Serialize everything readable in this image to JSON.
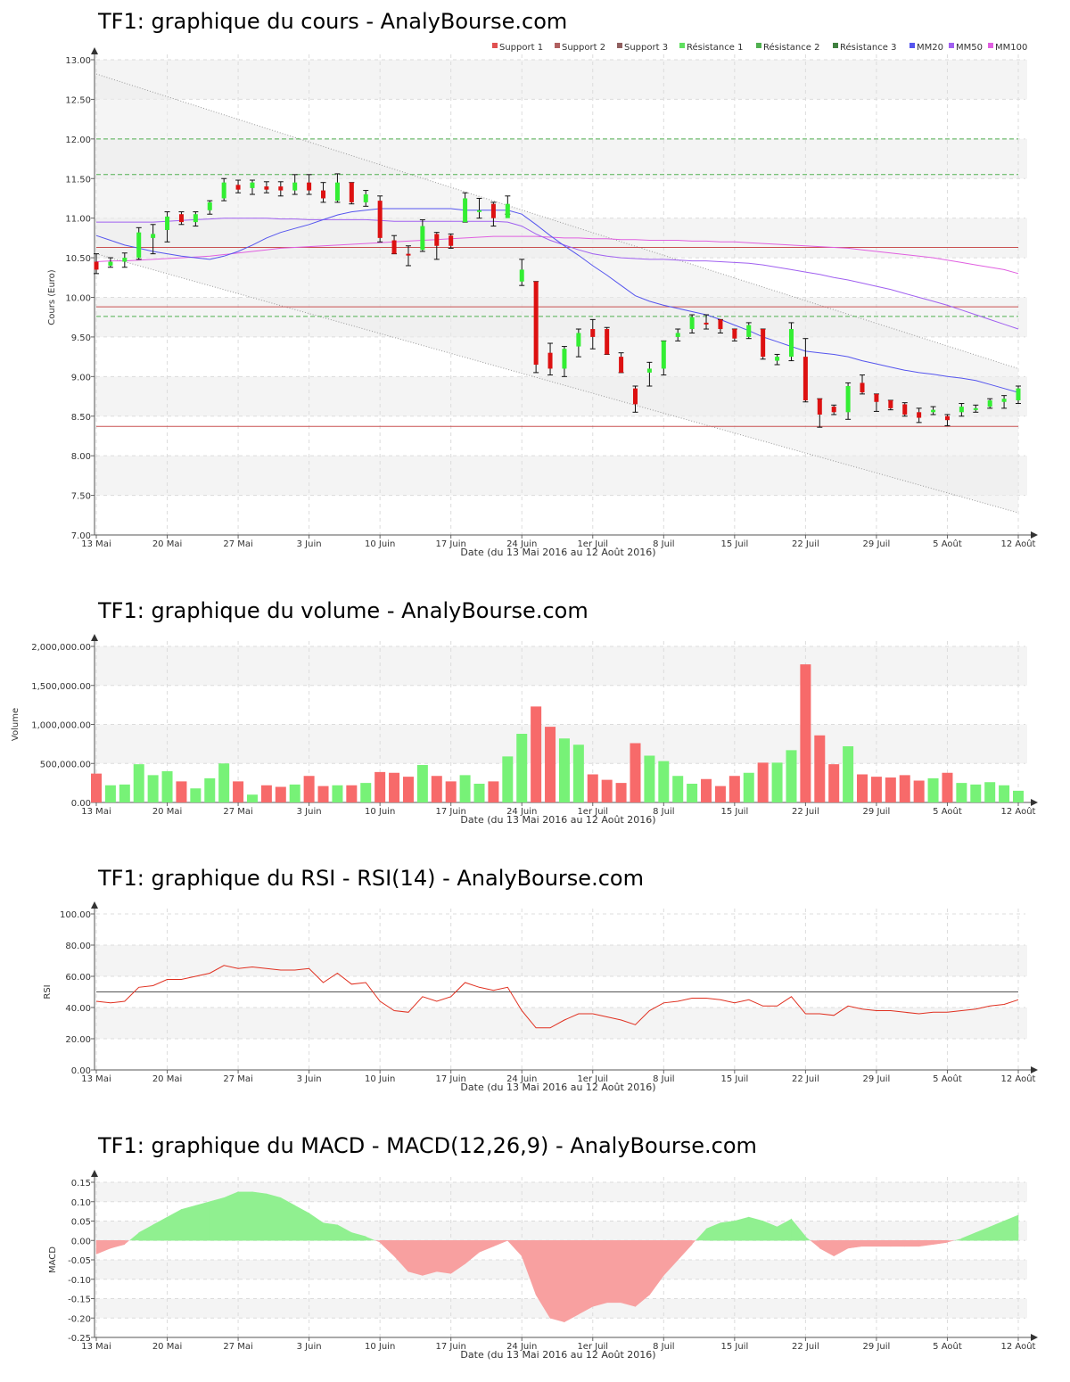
{
  "page": {
    "price_title": "TF1: graphique du cours - AnalyBourse.com",
    "volume_title": "TF1: graphique du volume - AnalyBourse.com",
    "rsi_title": "TF1: graphique du RSI - RSI(14) - AnalyBourse.com",
    "macd_title": "TF1: graphique du MACD - MACD(12,26,9) - AnalyBourse.com"
  },
  "colors": {
    "up": "#33ee33",
    "down": "#dd1111",
    "vol_up": "#77f277",
    "vol_down": "#f76a6a",
    "mm20": "#5555ee",
    "mm50": "#a060f0",
    "mm100": "#e060e0",
    "support": "#c85050",
    "resistance": "#50b050",
    "rsi": "#e03020",
    "macd_pos": "#90f090",
    "macd_neg": "#f8a0a0",
    "band_shade": "#f4f4f4",
    "grid": "#dcdcdc"
  },
  "chart_data": [
    {
      "type": "candlestick",
      "title": "TF1: graphique du cours - AnalyBourse.com",
      "xlabel": "Date (du 13 Mai 2016 au 12 Août 2016)",
      "ylabel": "Cours (Euro)",
      "ylim": [
        7.0,
        13.0
      ],
      "yticks": [
        7.0,
        7.5,
        8.0,
        8.5,
        9.0,
        9.5,
        10.0,
        10.5,
        11.0,
        11.5,
        12.0,
        12.5,
        13.0
      ],
      "ytick_labels": [
        "7.00",
        "7.50",
        "8.00",
        "8.50",
        "9.00",
        "9.50",
        "10.00",
        "10.50",
        "11.00",
        "11.50",
        "12.00",
        "12.50",
        "13.00"
      ],
      "xtick_labels": [
        "13 Mai",
        "20 Mai",
        "27 Mai",
        "3 Juin",
        "10 Juin",
        "17 Juin",
        "24 Juin",
        "1er Juil",
        "8 Juil",
        "15 Juil",
        "22 Juil",
        "29 Juil",
        "5 Août",
        "12 Août"
      ],
      "xtick_index": [
        0,
        5,
        10,
        15,
        20,
        25,
        30,
        35,
        40,
        45,
        50,
        55,
        60,
        65
      ],
      "legend": [
        "Support 1",
        "Support 2",
        "Support 3",
        "Résistance 1",
        "Résistance 2",
        "Résistance 3",
        "MM20",
        "MM50",
        "MM100"
      ],
      "legend_colors": [
        "#e05050",
        "#b06060",
        "#906060",
        "#60e060",
        "#50b050",
        "#408040",
        "#5555ee",
        "#a060f0",
        "#e060e0"
      ],
      "legend_position": "top-right",
      "grid": true,
      "candles": [
        [
          10.45,
          10.55,
          10.3,
          10.35
        ],
        [
          10.4,
          10.5,
          10.38,
          10.45
        ],
        [
          10.45,
          10.56,
          10.38,
          10.5
        ],
        [
          10.5,
          10.88,
          10.48,
          10.82
        ],
        [
          10.75,
          10.92,
          10.55,
          10.8
        ],
        [
          10.85,
          11.08,
          10.7,
          11.02
        ],
        [
          11.05,
          11.08,
          10.92,
          10.95
        ],
        [
          10.95,
          11.08,
          10.9,
          11.05
        ],
        [
          11.1,
          11.22,
          11.05,
          11.2
        ],
        [
          11.25,
          11.5,
          11.22,
          11.45
        ],
        [
          11.42,
          11.48,
          11.32,
          11.36
        ],
        [
          11.38,
          11.48,
          11.3,
          11.45
        ],
        [
          11.4,
          11.46,
          11.32,
          11.36
        ],
        [
          11.4,
          11.46,
          11.28,
          11.35
        ],
        [
          11.35,
          11.55,
          11.3,
          11.45
        ],
        [
          11.45,
          11.55,
          11.3,
          11.35
        ],
        [
          11.35,
          11.45,
          11.2,
          11.25
        ],
        [
          11.22,
          11.56,
          11.2,
          11.45
        ],
        [
          11.45,
          11.45,
          11.18,
          11.2
        ],
        [
          11.2,
          11.35,
          11.15,
          11.3
        ],
        [
          11.22,
          11.28,
          10.7,
          10.75
        ],
        [
          10.72,
          10.78,
          10.55,
          10.55
        ],
        [
          10.55,
          10.65,
          10.4,
          10.54
        ],
        [
          10.6,
          10.98,
          10.58,
          10.9
        ],
        [
          10.8,
          10.82,
          10.48,
          10.65
        ],
        [
          10.78,
          10.8,
          10.62,
          10.65
        ],
        [
          10.95,
          11.32,
          10.95,
          11.25
        ],
        [
          11.1,
          11.25,
          11.0,
          11.1
        ],
        [
          11.18,
          11.2,
          10.9,
          11.0
        ],
        [
          11.0,
          11.28,
          11.05,
          11.18
        ],
        [
          10.2,
          10.48,
          10.15,
          10.35
        ],
        [
          10.2,
          10.2,
          9.05,
          9.15
        ],
        [
          9.3,
          9.42,
          9.02,
          9.1
        ],
        [
          9.1,
          9.38,
          9.0,
          9.35
        ],
        [
          9.38,
          9.6,
          9.25,
          9.55
        ],
        [
          9.6,
          9.72,
          9.35,
          9.5
        ],
        [
          9.6,
          9.62,
          9.28,
          9.28
        ],
        [
          9.25,
          9.3,
          9.05,
          9.05
        ],
        [
          8.85,
          8.88,
          8.55,
          8.65
        ],
        [
          9.05,
          9.18,
          8.88,
          9.1
        ],
        [
          9.1,
          9.45,
          9.02,
          9.45
        ],
        [
          9.5,
          9.6,
          9.45,
          9.55
        ],
        [
          9.6,
          9.78,
          9.55,
          9.75
        ],
        [
          9.68,
          9.78,
          9.6,
          9.66
        ],
        [
          9.72,
          9.72,
          9.55,
          9.6
        ],
        [
          9.6,
          9.6,
          9.45,
          9.48
        ],
        [
          9.5,
          9.68,
          9.48,
          9.65
        ],
        [
          9.6,
          9.6,
          9.22,
          9.25
        ],
        [
          9.2,
          9.28,
          9.15,
          9.25
        ],
        [
          9.25,
          9.68,
          9.2,
          9.6
        ],
        [
          9.25,
          9.48,
          8.68,
          8.7
        ],
        [
          8.72,
          8.72,
          8.36,
          8.52
        ],
        [
          8.62,
          8.64,
          8.52,
          8.55
        ],
        [
          8.55,
          8.92,
          8.46,
          8.88
        ],
        [
          8.92,
          9.02,
          8.78,
          8.8
        ],
        [
          8.78,
          8.78,
          8.56,
          8.68
        ],
        [
          8.7,
          8.7,
          8.58,
          8.6
        ],
        [
          8.65,
          8.67,
          8.5,
          8.52
        ],
        [
          8.55,
          8.6,
          8.42,
          8.48
        ],
        [
          8.55,
          8.62,
          8.52,
          8.58
        ],
        [
          8.5,
          8.52,
          8.38,
          8.45
        ],
        [
          8.55,
          8.66,
          8.5,
          8.62
        ],
        [
          8.6,
          8.64,
          8.55,
          8.6
        ],
        [
          8.62,
          8.72,
          8.6,
          8.7
        ],
        [
          8.68,
          8.76,
          8.6,
          8.72
        ],
        [
          8.7,
          8.88,
          8.66,
          8.85
        ]
      ],
      "mm20": [
        10.78,
        10.72,
        10.66,
        10.62,
        10.58,
        10.55,
        10.52,
        10.5,
        10.48,
        10.52,
        10.58,
        10.66,
        10.75,
        10.82,
        10.87,
        10.92,
        10.98,
        11.04,
        11.08,
        11.1,
        11.12,
        11.12,
        11.12,
        11.12,
        11.12,
        11.12,
        11.1,
        11.1,
        11.1,
        11.1,
        11.05,
        10.92,
        10.78,
        10.65,
        10.53,
        10.4,
        10.28,
        10.15,
        10.02,
        9.95,
        9.9,
        9.86,
        9.82,
        9.78,
        9.72,
        9.65,
        9.58,
        9.5,
        9.44,
        9.38,
        9.32,
        9.3,
        9.28,
        9.25,
        9.2,
        9.16,
        9.12,
        9.08,
        9.05,
        9.03,
        9.0,
        8.98,
        8.95,
        8.9,
        8.85,
        8.8
      ],
      "mm50": [
        10.95,
        10.95,
        10.95,
        10.95,
        10.95,
        10.96,
        10.97,
        10.98,
        10.99,
        11.0,
        11.0,
        11.0,
        11.0,
        10.99,
        10.99,
        10.98,
        10.98,
        10.98,
        10.98,
        10.98,
        10.97,
        10.96,
        10.96,
        10.96,
        10.96,
        10.96,
        10.96,
        10.96,
        10.96,
        10.95,
        10.9,
        10.8,
        10.72,
        10.66,
        10.6,
        10.55,
        10.52,
        10.5,
        10.49,
        10.48,
        10.48,
        10.47,
        10.46,
        10.46,
        10.45,
        10.44,
        10.43,
        10.41,
        10.38,
        10.35,
        10.32,
        10.29,
        10.25,
        10.22,
        10.18,
        10.14,
        10.1,
        10.05,
        10.0,
        9.95,
        9.9,
        9.84,
        9.78,
        9.72,
        9.66,
        9.6
      ],
      "mm100": [
        10.45,
        10.46,
        10.46,
        10.47,
        10.48,
        10.49,
        10.5,
        10.51,
        10.52,
        10.54,
        10.56,
        10.58,
        10.6,
        10.62,
        10.63,
        10.64,
        10.65,
        10.66,
        10.67,
        10.68,
        10.69,
        10.7,
        10.71,
        10.72,
        10.73,
        10.74,
        10.75,
        10.76,
        10.77,
        10.77,
        10.77,
        10.77,
        10.76,
        10.75,
        10.75,
        10.74,
        10.74,
        10.73,
        10.73,
        10.72,
        10.72,
        10.72,
        10.71,
        10.71,
        10.7,
        10.7,
        10.69,
        10.68,
        10.67,
        10.66,
        10.65,
        10.64,
        10.63,
        10.62,
        10.6,
        10.58,
        10.56,
        10.54,
        10.52,
        10.5,
        10.47,
        10.44,
        10.41,
        10.38,
        10.35,
        10.3
      ],
      "supports": [
        {
          "name": "Support 1",
          "value": 8.37
        },
        {
          "name": "Support 2",
          "value": 9.88
        },
        {
          "name": "Support 3",
          "value": 10.63
        }
      ],
      "resistances": [
        {
          "name": "Résistance 1",
          "value": 9.76
        },
        {
          "name": "Résistance 2",
          "value": 11.55
        },
        {
          "name": "Résistance 3",
          "value": 12.0
        }
      ],
      "channel_upper": [
        12.82,
        9.1
      ],
      "channel_lower": [
        10.55,
        7.28
      ]
    },
    {
      "type": "bar",
      "title": "TF1: graphique du volume - AnalyBourse.com",
      "xlabel": "Date (du 13 Mai 2016 au 12 Août 2016)",
      "ylabel": "Volume",
      "ylim": [
        0,
        2000000
      ],
      "yticks": [
        0,
        500000,
        1000000,
        1500000,
        2000000
      ],
      "ytick_labels": [
        "0.00",
        "500,000.00",
        "1,000,000.00",
        "1,500,000.00",
        "2,000,000.00"
      ],
      "xtick_labels": [
        "13 Mai",
        "20 Mai",
        "27 Mai",
        "3 Juin",
        "10 Juin",
        "17 Juin",
        "24 Juin",
        "1er Juil",
        "8 Juil",
        "15 Juil",
        "22 Juil",
        "29 Juil",
        "5 Août",
        "12 Août"
      ],
      "grid": true,
      "values": [
        370000,
        220000,
        230000,
        490000,
        350000,
        400000,
        270000,
        180000,
        310000,
        500000,
        270000,
        100000,
        220000,
        200000,
        230000,
        340000,
        210000,
        220000,
        220000,
        250000,
        390000,
        380000,
        330000,
        480000,
        340000,
        270000,
        350000,
        240000,
        270000,
        590000,
        880000,
        1230000,
        970000,
        820000,
        740000,
        360000,
        290000,
        250000,
        760000,
        600000,
        530000,
        340000,
        240000,
        300000,
        210000,
        340000,
        380000,
        510000,
        510000,
        670000,
        1770000,
        860000,
        490000,
        720000,
        360000,
        330000,
        320000,
        350000,
        280000,
        310000,
        380000,
        250000,
        230000,
        260000,
        220000,
        150000
      ]
    },
    {
      "type": "line",
      "title": "TF1: graphique du RSI - RSI(14) - AnalyBourse.com",
      "xlabel": "Date (du 13 Mai 2016 au 12 Août 2016)",
      "ylabel": "RSI",
      "ylim": [
        0,
        100
      ],
      "yticks": [
        0,
        20,
        40,
        60,
        80,
        100
      ],
      "ytick_labels": [
        "0.00",
        "20.00",
        "40.00",
        "60.00",
        "80.00",
        "100.00"
      ],
      "xtick_labels": [
        "13 Mai",
        "20 Mai",
        "27 Mai",
        "3 Juin",
        "10 Juin",
        "17 Juin",
        "24 Juin",
        "1er Juil",
        "8 Juil",
        "15 Juil",
        "22 Juil",
        "29 Juil",
        "5 Août",
        "12 Août"
      ],
      "reference_line": 50,
      "grid": true,
      "values": [
        44,
        43,
        44,
        53,
        54,
        58,
        58,
        60,
        62,
        67,
        65,
        66,
        65,
        64,
        64,
        65,
        56,
        62,
        55,
        56,
        44,
        38,
        37,
        47,
        44,
        47,
        56,
        53,
        51,
        53,
        38,
        27,
        27,
        32,
        36,
        36,
        34,
        32,
        29,
        38,
        43,
        44,
        46,
        46,
        45,
        43,
        45,
        41,
        41,
        47,
        36,
        36,
        35,
        41,
        39,
        38,
        38,
        37,
        36,
        37,
        37,
        38,
        39,
        41,
        42,
        45
      ]
    },
    {
      "type": "area",
      "title": "TF1: graphique du MACD - MACD(12,26,9) - AnalyBourse.com",
      "xlabel": "Date (du 13 Mai 2016 au 12 Août 2016)",
      "ylabel": "MACD",
      "ylim": [
        -0.25,
        0.15
      ],
      "yticks": [
        -0.25,
        -0.2,
        -0.15,
        -0.1,
        -0.05,
        0,
        0.05,
        0.1,
        0.15
      ],
      "ytick_labels": [
        "-0.25",
        "-0.20",
        "-0.15",
        "-0.10",
        "-0.05",
        "0.00",
        "0.05",
        "0.10",
        "0.15"
      ],
      "xtick_labels": [
        "13 Mai",
        "20 Mai",
        "27 Mai",
        "3 Juin",
        "10 Juin",
        "17 Juin",
        "24 Juin",
        "1er Juil",
        "8 Juil",
        "15 Juil",
        "22 Juil",
        "29 Juil",
        "5 Août",
        "12 Août"
      ],
      "grid": true,
      "values": [
        -0.035,
        -0.02,
        -0.01,
        0.02,
        0.04,
        0.06,
        0.08,
        0.09,
        0.1,
        0.11,
        0.125,
        0.125,
        0.12,
        0.11,
        0.09,
        0.07,
        0.045,
        0.04,
        0.02,
        0.01,
        -0.005,
        -0.04,
        -0.08,
        -0.09,
        -0.08,
        -0.085,
        -0.06,
        -0.03,
        -0.015,
        0.0,
        -0.04,
        -0.14,
        -0.2,
        -0.21,
        -0.19,
        -0.17,
        -0.16,
        -0.16,
        -0.17,
        -0.14,
        -0.09,
        -0.05,
        -0.01,
        0.03,
        0.045,
        0.05,
        0.06,
        0.05,
        0.035,
        0.055,
        0.01,
        -0.02,
        -0.04,
        -0.02,
        -0.015,
        -0.015,
        -0.015,
        -0.015,
        -0.015,
        -0.01,
        -0.005,
        0.005,
        0.02,
        0.035,
        0.05,
        0.065
      ]
    }
  ]
}
